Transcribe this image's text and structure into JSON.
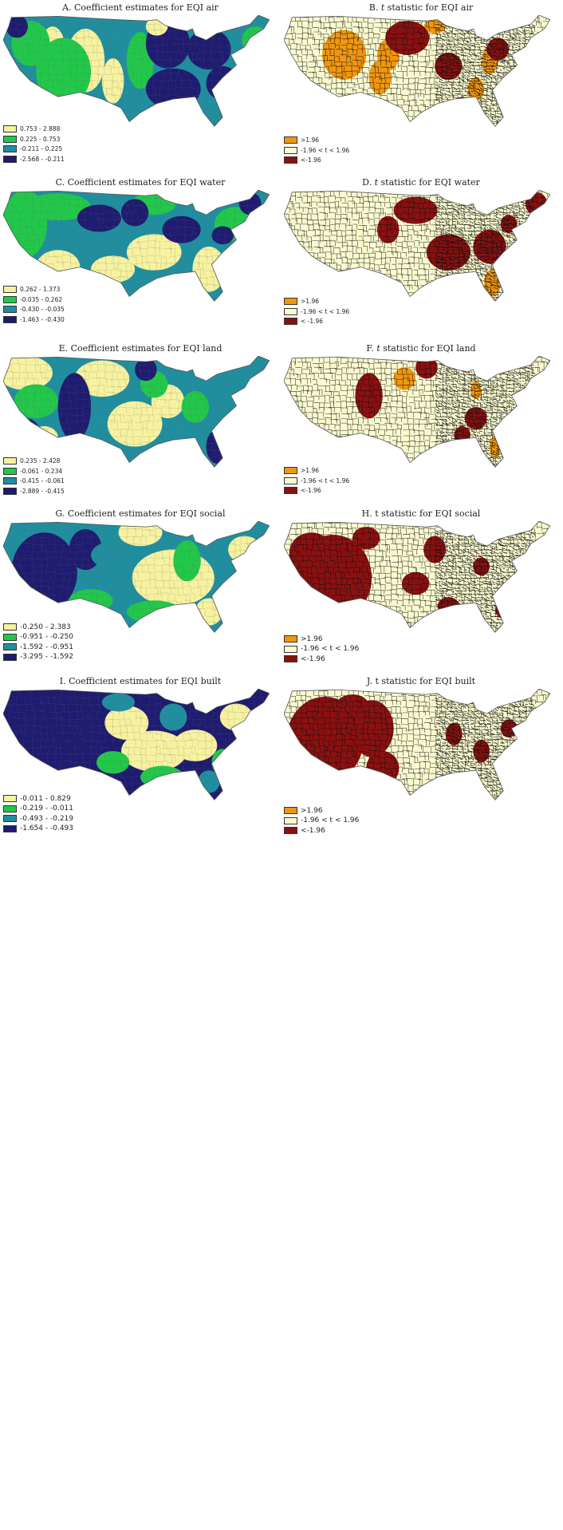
{
  "colors": {
    "coef_scale": [
      "#f7f2a0",
      "#22c84a",
      "#1f8fa0",
      "#1e1b70"
    ],
    "t_scale": [
      "#f0960f",
      "#fafad0",
      "#8b1010"
    ],
    "boundary": "#111111",
    "map_outline": "#555555"
  },
  "panels": [
    {
      "key": "A",
      "kind": "coef",
      "title_pre": "A. Coefficient estimates for EQI air",
      "title_ital": "",
      "title_post": "",
      "legend": [
        "0.753 - 2.888",
        "0.225 - 0.753",
        "-0.211 - 0.225",
        "-2.568 - -0.211"
      ]
    },
    {
      "key": "B",
      "kind": "t",
      "title_pre": "B. ",
      "title_ital": "t",
      "title_post": " statistic for EQI air",
      "legend": [
        ">1.96",
        "-1.96 < t < 1.96",
        "<-1.96"
      ]
    },
    {
      "key": "C",
      "kind": "coef",
      "title_pre": "C. Coefficient estimates for EQI water",
      "title_ital": "",
      "title_post": "",
      "legend": [
        "0.262 - 1.373",
        "-0.035 - 0.262",
        "-0.430 - -0.035",
        "-1.463 - -0.430"
      ]
    },
    {
      "key": "D",
      "kind": "t",
      "title_pre": "D. ",
      "title_ital": "t",
      "title_post": " statistic for EQI water",
      "legend": [
        ">1.96",
        "-1.96 < t < 1.96",
        "< -1.96"
      ]
    },
    {
      "key": "E",
      "kind": "coef",
      "title_pre": "E. Coefficient estimates for EQI land",
      "title_ital": "",
      "title_post": "",
      "legend": [
        "0.235 - 2.428",
        "-0.061 - 0.234",
        "-0.415 - -0.061",
        "-2.889 - -0.415"
      ]
    },
    {
      "key": "F",
      "kind": "t",
      "title_pre": "F. ",
      "title_ital": "t",
      "title_post": " statistic for EQI land",
      "legend": [
        ">1.96",
        "-1.96 < t < 1.96",
        "<-1.96"
      ]
    },
    {
      "key": "G",
      "kind": "coef",
      "title_pre": "G. Coefficient estimates for EQI social",
      "title_ital": "",
      "title_post": "",
      "legend": [
        "-0.250 - 2.383",
        "-0.951 - -0.250",
        "-1.592 - -0.951",
        "-3.295 - -1.592"
      ]
    },
    {
      "key": "H",
      "kind": "t",
      "title_pre": "H. t statistic for EQI social",
      "title_ital": "",
      "title_post": "",
      "legend": [
        ">1.96",
        "-1.96 < t < 1.96",
        "<-1.96"
      ]
    },
    {
      "key": "I",
      "kind": "coef",
      "title_pre": "I. Coefficient estimates for EQI built",
      "title_ital": "",
      "title_post": "",
      "legend": [
        "-0.011 - 0.829",
        "-0.219 - -0.011",
        "-0.493 - -0.219",
        "-1.654 - -0.493"
      ]
    },
    {
      "key": "J",
      "kind": "t",
      "title_pre": "J. t statistic for EQI built",
      "title_ital": "",
      "title_post": "",
      "legend": [
        ">1.96",
        "-1.96 < t < 1.96",
        "<-1.96"
      ]
    }
  ]
}
